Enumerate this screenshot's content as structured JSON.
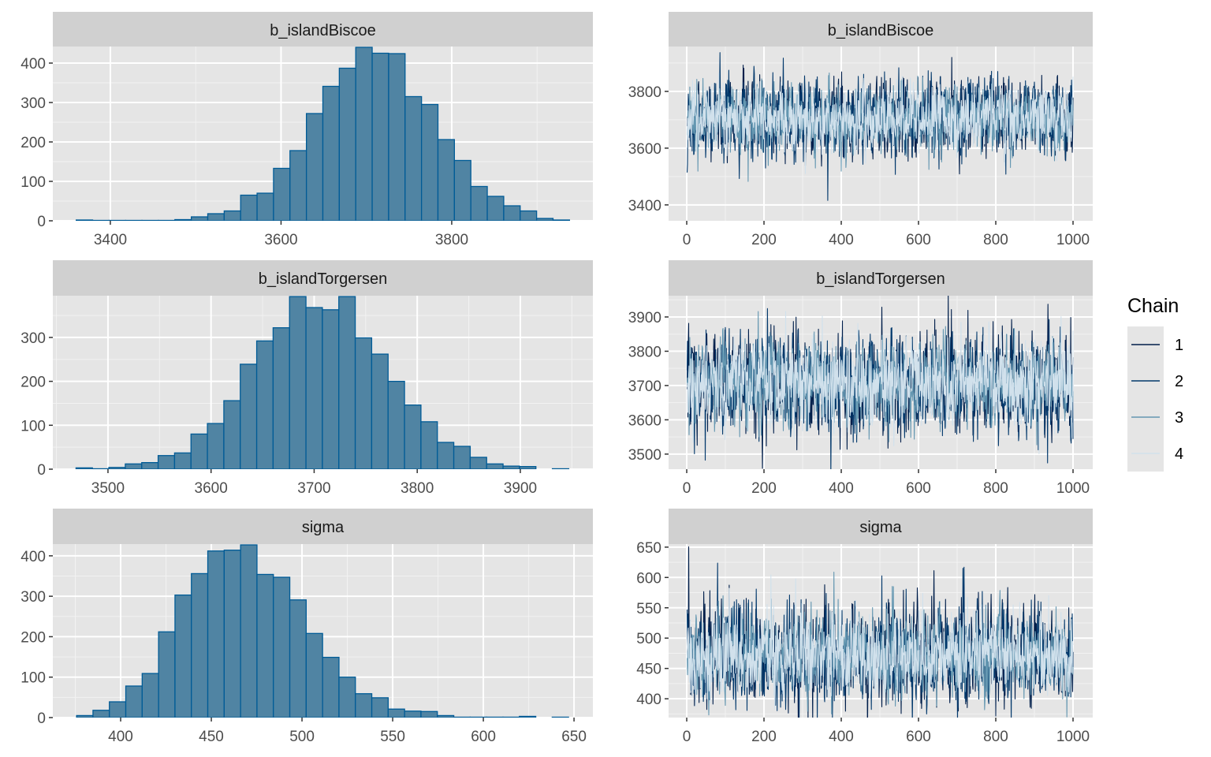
{
  "chart_data": [
    {
      "type": "bar",
      "subtype": "histogram",
      "title": "b_islandBiscoe",
      "bin_range": [
        3360,
        3938
      ],
      "bins": 30,
      "values": [
        2,
        1,
        1,
        1,
        1,
        1,
        3,
        10,
        18,
        25,
        65,
        70,
        133,
        178,
        272,
        341,
        387,
        440,
        425,
        424,
        315,
        295,
        206,
        153,
        87,
        62,
        38,
        25,
        6,
        2
      ],
      "xlim": [
        3332.6,
        3965.4
      ],
      "ylim": [
        0,
        442
      ],
      "xticks": [
        3400,
        3600,
        3800
      ],
      "yticks": [
        0,
        100,
        200,
        300,
        400
      ],
      "grid": true
    },
    {
      "type": "line",
      "subtype": "trace",
      "title": "b_islandBiscoe",
      "iterations": 1000,
      "chains": [
        "1",
        "2",
        "3",
        "4"
      ],
      "summary": {
        "mean": 3705,
        "sd": 65
      },
      "xlim": [
        -47,
        1051
      ],
      "ylim": [
        3344,
        3958
      ],
      "xticks": [
        0,
        200,
        400,
        600,
        800,
        1000
      ],
      "yticks": [
        3400,
        3600,
        3800
      ],
      "grid": true
    },
    {
      "type": "bar",
      "subtype": "histogram",
      "title": "b_islandTorgersen",
      "bin_range": [
        3469,
        3947
      ],
      "bins": 30,
      "values": [
        3,
        1,
        4,
        12,
        15,
        31,
        37,
        80,
        104,
        156,
        239,
        292,
        322,
        393,
        368,
        363,
        393,
        299,
        262,
        200,
        146,
        108,
        61,
        52,
        27,
        12,
        7,
        6,
        0,
        1
      ],
      "xlim": [
        3446.5,
        3970.4
      ],
      "ylim": [
        0,
        395
      ],
      "xticks": [
        3500,
        3600,
        3700,
        3800,
        3900
      ],
      "yticks": [
        0,
        100,
        200,
        300
      ],
      "grid": true
    },
    {
      "type": "line",
      "subtype": "trace",
      "title": "b_islandTorgersen",
      "iterations": 1000,
      "chains": [
        "1",
        "2",
        "3",
        "4"
      ],
      "summary": {
        "mean": 3705,
        "sd": 70
      },
      "xlim": [
        -47,
        1051
      ],
      "ylim": [
        3456,
        3962
      ],
      "xticks": [
        0,
        200,
        400,
        600,
        800,
        1000
      ],
      "yticks": [
        3500,
        3600,
        3700,
        3800,
        3900
      ],
      "grid": true
    },
    {
      "type": "bar",
      "subtype": "histogram",
      "title": "sigma",
      "bin_range": [
        375.7,
        647
      ],
      "bins": 30,
      "values": [
        5,
        18,
        39,
        78,
        109,
        212,
        303,
        356,
        412,
        414,
        427,
        354,
        347,
        291,
        208,
        149,
        100,
        59,
        49,
        21,
        16,
        15,
        5,
        1,
        1,
        1,
        1,
        3,
        0,
        1
      ],
      "xlim": [
        362.6,
        660.4
      ],
      "ylim": [
        0,
        429
      ],
      "xticks": [
        400,
        450,
        500,
        550,
        600,
        650
      ],
      "yticks": [
        0,
        100,
        200,
        300,
        400
      ],
      "grid": true
    },
    {
      "type": "line",
      "subtype": "trace",
      "title": "sigma",
      "iterations": 1000,
      "chains": [
        "1",
        "2",
        "3",
        "4"
      ],
      "summary": {
        "mean": 470,
        "sd": 36
      },
      "xlim": [
        -47,
        1051
      ],
      "ylim": [
        369,
        655
      ],
      "xticks": [
        0,
        200,
        400,
        600,
        800,
        1000
      ],
      "yticks": [
        400,
        450,
        500,
        550,
        600,
        650
      ],
      "grid": true
    }
  ],
  "legend": {
    "title": "Chain",
    "placement": "right",
    "items": [
      {
        "label": "1",
        "color": "#011f4b"
      },
      {
        "label": "2",
        "color": "#03396c"
      },
      {
        "label": "3",
        "color": "#6497b1"
      },
      {
        "label": "4",
        "color": "#d1e1ec"
      }
    ]
  },
  "colors": {
    "hist_fill": "#5084a3",
    "hist_outline": "#005b96",
    "panel_bg": "#e5e5e5",
    "strip_bg": "#d0d0d0"
  }
}
